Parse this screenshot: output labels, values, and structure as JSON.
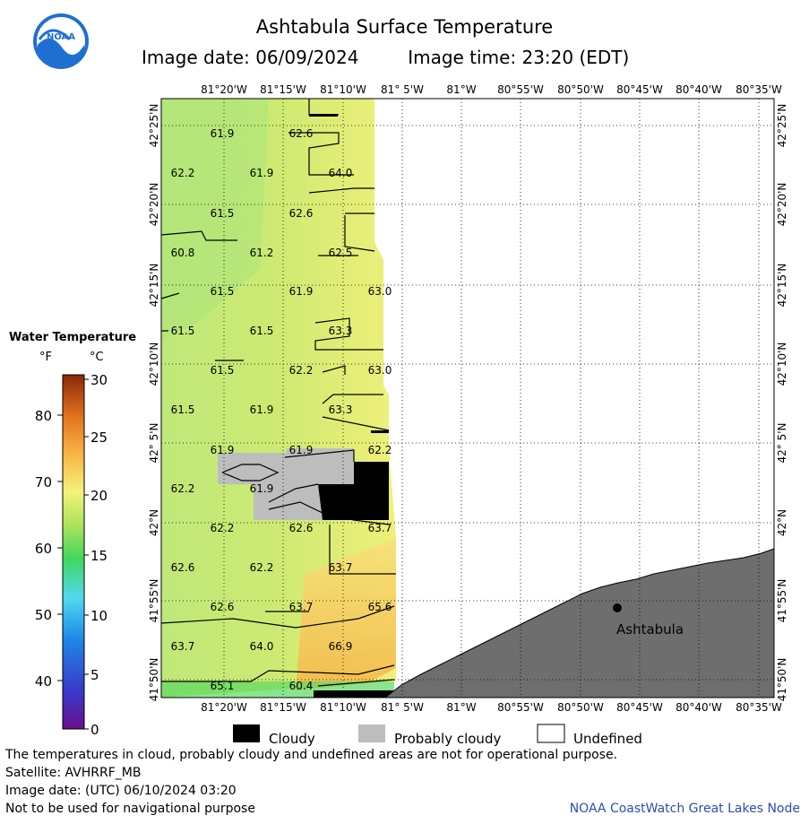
{
  "header": {
    "title": "Ashtabula Surface Temperature",
    "image_date": "Image date: 06/09/2024",
    "image_time": "Image time: 23:20 (EDT)"
  },
  "logo": {
    "text": "NOAA"
  },
  "top_lon_ticks": [
    "81°20'W",
    "81°15'W",
    "81°10'W",
    "81° 5'W",
    "81°W",
    "80°55'W",
    "80°50'W",
    "80°45'W",
    "80°40'W",
    "80°35'W"
  ],
  "bottom_lon_ticks": [
    "81°20'W",
    "81°15'W",
    "81°10'W",
    "81° 5'W",
    "81°W",
    "80°55'W",
    "80°50'W",
    "80°45'W",
    "80°40'W",
    "80°35'W"
  ],
  "lat_ticks": [
    "42°25'N",
    "42°20'N",
    "42°15'N",
    "42°10'N",
    "42° 5'N",
    "42°N",
    "41°55'N",
    "41°50'N"
  ],
  "colorbar": {
    "title": "Water Temperature",
    "unit_f": "°F",
    "unit_c": "°C",
    "f_ticks": [
      "80",
      "70",
      "60",
      "50",
      "40"
    ],
    "c_ticks": [
      "30",
      "25",
      "20",
      "15",
      "10",
      "5",
      "0"
    ]
  },
  "temperature_labels": [
    "61.9",
    "62.6",
    "62.2",
    "61.9",
    "64.0",
    "61.5",
    "62.6",
    "60.8",
    "61.2",
    "62.5",
    "61.5",
    "61.9",
    "63.0",
    "61.5",
    "61.5",
    "63.3",
    "61.5",
    "62.2",
    "63.0",
    "61.5",
    "61.9",
    "63.3",
    "61.9",
    "61.9",
    "62.2",
    "62.2",
    "61.9",
    "62.2",
    "62.6",
    "63.7",
    "62.6",
    "62.2",
    "63.7",
    "62.6",
    "63.7",
    "65.6",
    "63.7",
    "64.0",
    "66.9",
    "65.1",
    "60.4"
  ],
  "city": {
    "name": "Ashtabula"
  },
  "legend": {
    "cloudy": "Cloudy",
    "probably_cloudy": "Probably cloudy",
    "undefined": "Undefined"
  },
  "footer": {
    "note": "The temperatures in cloud, probably cloudy and undefined areas are not for operational purpose.",
    "satellite": "Satellite: AVHRRF_MB",
    "utc_date": "Image date: (UTC) 06/10/2024  03:20",
    "nav_warning": "Not to be used for navigational purpose",
    "credit": "NOAA CoastWatch Great Lakes Node"
  },
  "colors": {
    "cloudy": "#000000",
    "probably_cloudy": "#bdbdbd",
    "land": "#6e6e6e",
    "credit": "#2b4fb3"
  }
}
